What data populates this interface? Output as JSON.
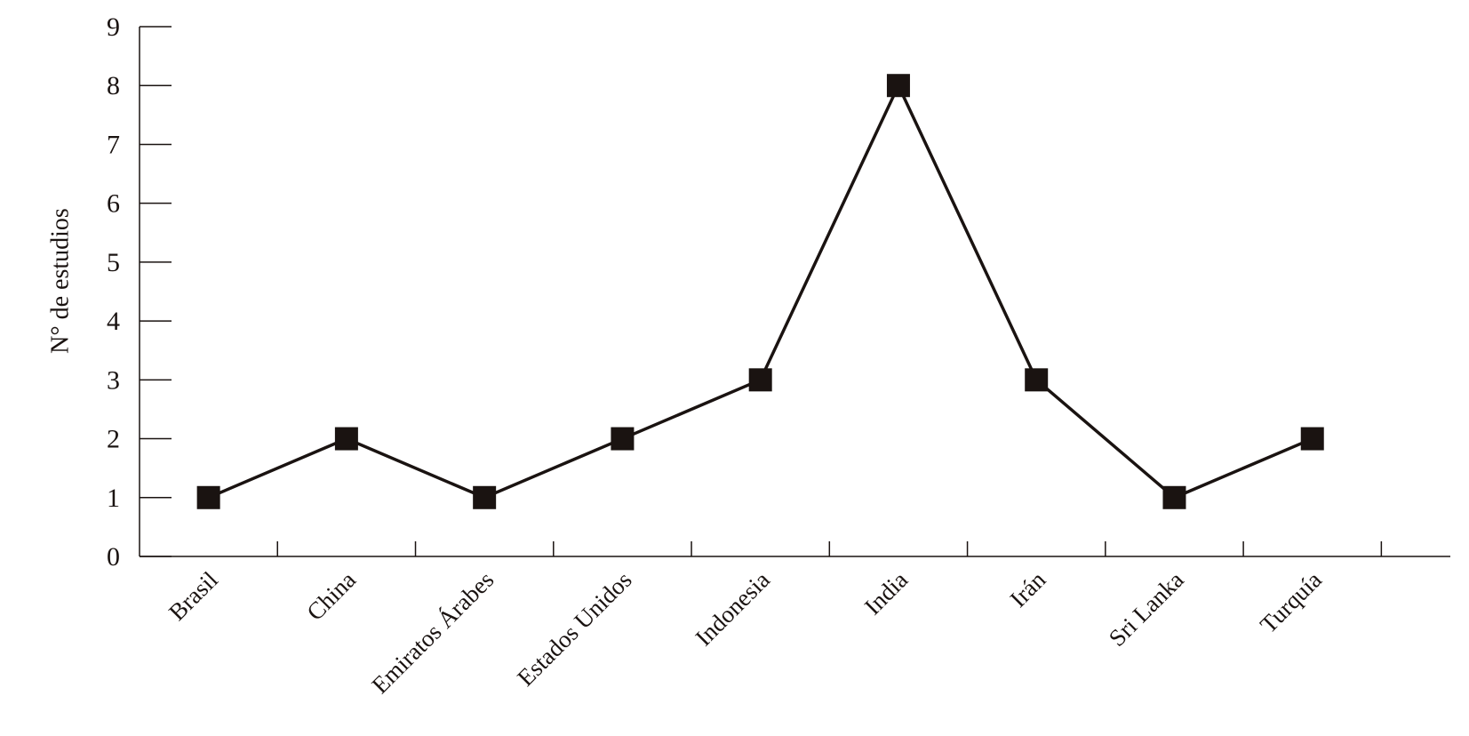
{
  "chart_data": {
    "type": "line",
    "y_label": "N° de estudios",
    "categories": [
      "Brasil",
      "China",
      "Emiratos Árabes",
      "Estados Unidos",
      "Indonesia",
      "India",
      "Irán",
      "Sri Lanka",
      "Turquía"
    ],
    "values": [
      1,
      2,
      1,
      2,
      3,
      8,
      3,
      1,
      2
    ],
    "color": "#1a1311",
    "ylim": [
      0,
      9
    ],
    "yticks": [
      0,
      1,
      2,
      3,
      4,
      5,
      6,
      7,
      8,
      9
    ],
    "grid": false
  }
}
